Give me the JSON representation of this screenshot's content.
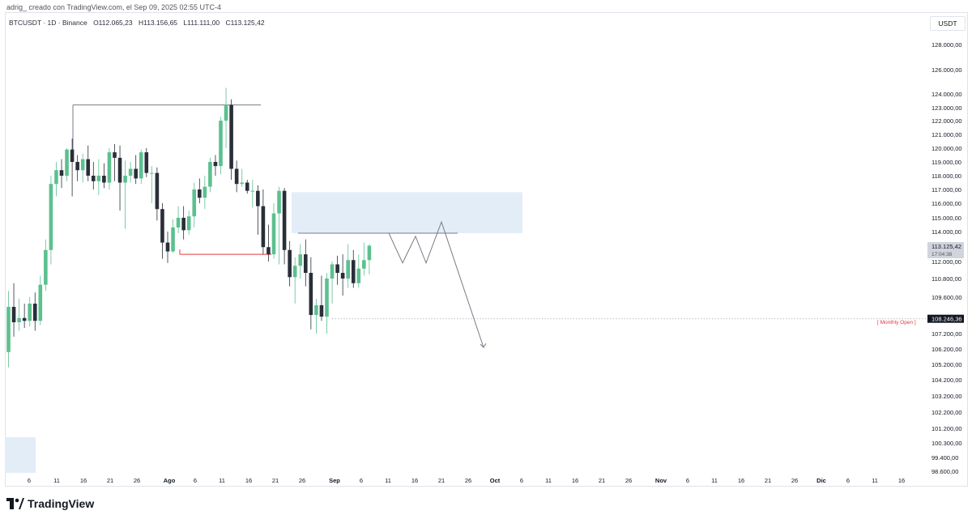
{
  "header": {
    "caption": "adrig_ creado con TradingView.com, el Sep 09, 2025 02:55 UTC-4",
    "symbol": "BTCUSDT · 1D · Binance",
    "open": "O112.065,23",
    "high": "H113.156,65",
    "low": "L111.111,00",
    "close": "C113.125,42"
  },
  "currency": "USDT",
  "price_badge": {
    "price": "113.125,42",
    "countdown": "17:04:38"
  },
  "monthly_open": {
    "label": "[ Monthly Open ]",
    "value": "108.246,36"
  },
  "brand": {
    "name": "TradingView"
  },
  "colors": {
    "up": "#5cc08f",
    "down": "#2a2e39",
    "zone": "#e3edf8",
    "support_line": "#e0393e",
    "resistance_line": "#787b86"
  },
  "chart_data": {
    "type": "candlestick",
    "symbol": "BTCUSDT",
    "interval": "1D",
    "exchange": "Binance",
    "y_tick_labels": [
      "128.000,00",
      "126.000,00",
      "124.000,00",
      "123.000,00",
      "122.000,00",
      "121.000,00",
      "120.000,00",
      "119.000,00",
      "118.000,00",
      "117.000,00",
      "116.000,00",
      "115.000,00",
      "114.000,00",
      "112.000,00",
      "110.800,00",
      "109.600,00",
      "108.400,00",
      "107.200,00",
      "106.200,00",
      "105.200,00",
      "104.200,00",
      "103.200,00",
      "102.200,00",
      "101.200,00",
      "100.300,00",
      "99.400,00",
      "98.600,00"
    ],
    "x_tick_labels": [
      "6",
      "11",
      "16",
      "21",
      "26",
      "Ago",
      "6",
      "11",
      "16",
      "21",
      "26",
      "Sep",
      "6",
      "11",
      "16",
      "21",
      "26",
      "Oct",
      "6",
      "11",
      "16",
      "21",
      "26",
      "Nov",
      "6",
      "11",
      "16",
      "21",
      "26",
      "Dic",
      "6",
      "11",
      "16"
    ],
    "candles": [
      {
        "o": 106000,
        "h": 110000,
        "l": 105000,
        "c": 109000
      },
      {
        "o": 109000,
        "h": 110500,
        "l": 107000,
        "c": 108000
      },
      {
        "o": 108000,
        "h": 109500,
        "l": 107400,
        "c": 108300
      },
      {
        "o": 108300,
        "h": 109200,
        "l": 107600,
        "c": 108100
      },
      {
        "o": 108100,
        "h": 109600,
        "l": 107700,
        "c": 109200
      },
      {
        "o": 109200,
        "h": 109900,
        "l": 107400,
        "c": 108100
      },
      {
        "o": 108100,
        "h": 111000,
        "l": 107800,
        "c": 110400
      },
      {
        "o": 110400,
        "h": 113500,
        "l": 110000,
        "c": 112800
      },
      {
        "o": 112800,
        "h": 118000,
        "l": 111800,
        "c": 117400
      },
      {
        "o": 117400,
        "h": 119000,
        "l": 116500,
        "c": 118400
      },
      {
        "o": 118400,
        "h": 119200,
        "l": 117100,
        "c": 118000
      },
      {
        "o": 118000,
        "h": 120000,
        "l": 117600,
        "c": 119900
      },
      {
        "o": 119900,
        "h": 120700,
        "l": 116500,
        "c": 119000
      },
      {
        "o": 119000,
        "h": 119500,
        "l": 117600,
        "c": 118400
      },
      {
        "o": 118400,
        "h": 119600,
        "l": 117500,
        "c": 119200
      },
      {
        "o": 119200,
        "h": 120200,
        "l": 117600,
        "c": 118000
      },
      {
        "o": 118000,
        "h": 119000,
        "l": 117000,
        "c": 117600
      },
      {
        "o": 117600,
        "h": 119200,
        "l": 116600,
        "c": 118000
      },
      {
        "o": 118000,
        "h": 118900,
        "l": 117100,
        "c": 117500
      },
      {
        "o": 117500,
        "h": 120000,
        "l": 117000,
        "c": 119700
      },
      {
        "o": 119700,
        "h": 120300,
        "l": 117600,
        "c": 119300
      },
      {
        "o": 119300,
        "h": 120200,
        "l": 115500,
        "c": 117500
      },
      {
        "o": 117500,
        "h": 119100,
        "l": 114200,
        "c": 118000
      },
      {
        "o": 118000,
        "h": 119000,
        "l": 117500,
        "c": 118500
      },
      {
        "o": 118500,
        "h": 119500,
        "l": 117400,
        "c": 117800
      },
      {
        "o": 117800,
        "h": 119900,
        "l": 117400,
        "c": 119700
      },
      {
        "o": 119700,
        "h": 120000,
        "l": 117900,
        "c": 118200
      },
      {
        "o": 118200,
        "h": 118700,
        "l": 116000,
        "c": 118200
      },
      {
        "o": 118200,
        "h": 118600,
        "l": 114800,
        "c": 115600
      },
      {
        "o": 115600,
        "h": 116000,
        "l": 112200,
        "c": 113300
      },
      {
        "o": 113300,
        "h": 114000,
        "l": 111900,
        "c": 112700
      },
      {
        "o": 112700,
        "h": 114900,
        "l": 112600,
        "c": 114300
      },
      {
        "o": 114300,
        "h": 115800,
        "l": 113900,
        "c": 115000
      },
      {
        "o": 115000,
        "h": 115800,
        "l": 113500,
        "c": 114100
      },
      {
        "o": 114100,
        "h": 115500,
        "l": 113800,
        "c": 115100
      },
      {
        "o": 115100,
        "h": 117500,
        "l": 114300,
        "c": 117000
      },
      {
        "o": 117000,
        "h": 117800,
        "l": 116000,
        "c": 116400
      },
      {
        "o": 116400,
        "h": 118000,
        "l": 115600,
        "c": 117200
      },
      {
        "o": 117200,
        "h": 119300,
        "l": 116800,
        "c": 119000
      },
      {
        "o": 119000,
        "h": 119500,
        "l": 118000,
        "c": 118700
      },
      {
        "o": 118700,
        "h": 122300,
        "l": 118100,
        "c": 122000
      },
      {
        "o": 122000,
        "h": 124500,
        "l": 120000,
        "c": 123200
      },
      {
        "o": 123200,
        "h": 123600,
        "l": 117700,
        "c": 118500
      },
      {
        "o": 118500,
        "h": 119100,
        "l": 116800,
        "c": 117400
      },
      {
        "o": 117400,
        "h": 118500,
        "l": 117200,
        "c": 117500
      },
      {
        "o": 117500,
        "h": 117700,
        "l": 116700,
        "c": 116900
      },
      {
        "o": 116900,
        "h": 117700,
        "l": 115700,
        "c": 116900
      },
      {
        "o": 116900,
        "h": 117300,
        "l": 113800,
        "c": 115800
      },
      {
        "o": 115800,
        "h": 117000,
        "l": 112500,
        "c": 113000
      },
      {
        "o": 113000,
        "h": 114500,
        "l": 112000,
        "c": 112500
      },
      {
        "o": 112500,
        "h": 116000,
        "l": 112200,
        "c": 115300
      },
      {
        "o": 115300,
        "h": 117200,
        "l": 111800,
        "c": 116900
      },
      {
        "o": 116900,
        "h": 117100,
        "l": 111800,
        "c": 112800
      },
      {
        "o": 112800,
        "h": 113400,
        "l": 110300,
        "c": 110900
      },
      {
        "o": 110900,
        "h": 112300,
        "l": 109200,
        "c": 111700
      },
      {
        "o": 111700,
        "h": 113200,
        "l": 110800,
        "c": 112500
      },
      {
        "o": 112500,
        "h": 113500,
        "l": 110300,
        "c": 111200
      },
      {
        "o": 111200,
        "h": 112300,
        "l": 107500,
        "c": 108500
      },
      {
        "o": 108500,
        "h": 109500,
        "l": 107200,
        "c": 109100
      },
      {
        "o": 109100,
        "h": 111000,
        "l": 108100,
        "c": 108400
      },
      {
        "o": 108400,
        "h": 111200,
        "l": 107200,
        "c": 110800
      },
      {
        "o": 110800,
        "h": 112000,
        "l": 109200,
        "c": 111800
      },
      {
        "o": 111800,
        "h": 112400,
        "l": 110400,
        "c": 111200
      },
      {
        "o": 111200,
        "h": 112500,
        "l": 109700,
        "c": 110800
      },
      {
        "o": 110800,
        "h": 113200,
        "l": 110200,
        "c": 112100
      },
      {
        "o": 112100,
        "h": 112800,
        "l": 110200,
        "c": 110500
      },
      {
        "o": 110500,
        "h": 112500,
        "l": 110200,
        "c": 111500
      },
      {
        "o": 111500,
        "h": 113300,
        "l": 111000,
        "c": 112100
      },
      {
        "o": 112100,
        "h": 113200,
        "l": 111100,
        "c": 113100
      }
    ],
    "resistance_top": {
      "price": 123200
    },
    "support": {
      "price": 112500
    },
    "range_high": {
      "price": 113900
    },
    "supply_zone": {
      "low": 113900,
      "high": 116800
    },
    "monthly_open_price": 108246.36
  }
}
